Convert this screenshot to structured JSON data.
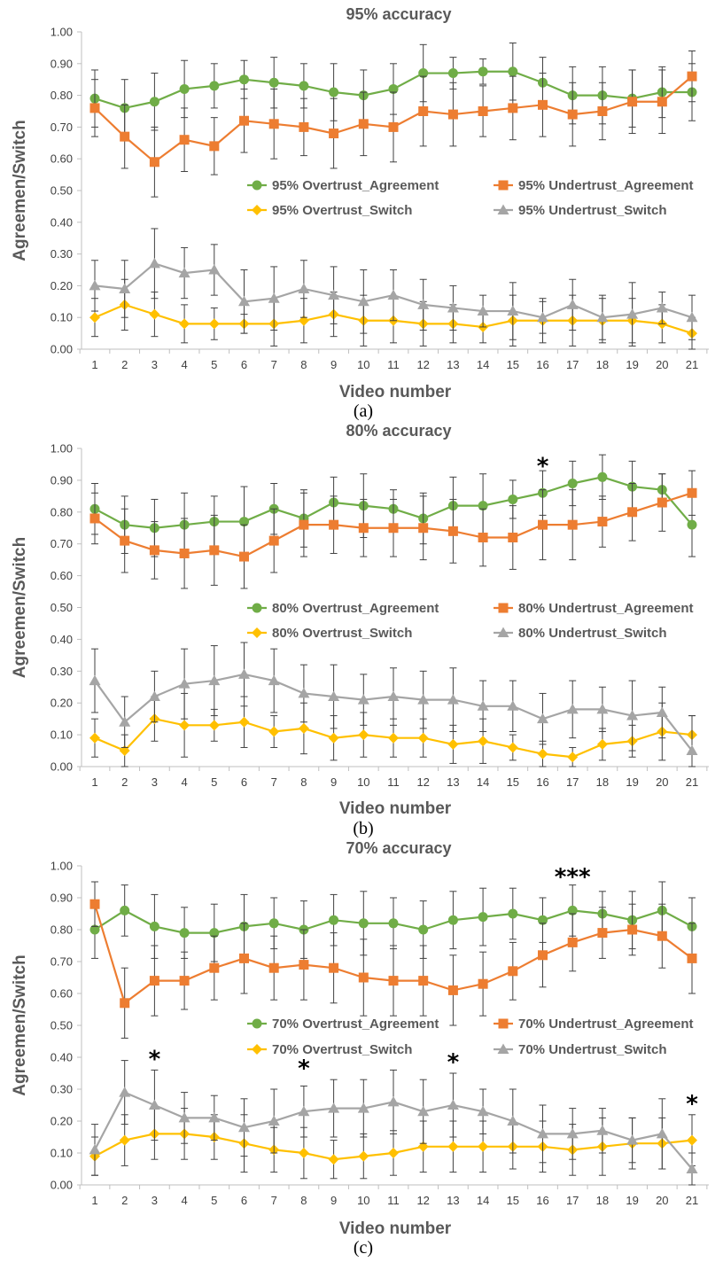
{
  "colors": {
    "overtrust_agreement": "#70AD47",
    "undertrust_agreement": "#ED7D31",
    "overtrust_switch": "#FFC000",
    "undertrust_switch": "#A5A5A5",
    "axis": "#bfbfbf",
    "errorbar": "#404040"
  },
  "chart_data": [
    {
      "type": "line",
      "caption": "(a)",
      "title": "95% accuracy",
      "xlabel": "Video number",
      "ylabel": "Agreemen/Switch",
      "ylim": [
        0,
        1
      ],
      "yticks": [
        "0.00",
        "0.10",
        "0.20",
        "0.30",
        "0.40",
        "0.50",
        "0.60",
        "0.70",
        "0.80",
        "0.90",
        "1.00"
      ],
      "x": [
        "1",
        "2",
        "3",
        "4",
        "5",
        "6",
        "7",
        "8",
        "9",
        "10",
        "11",
        "12",
        "13",
        "14",
        "15",
        "16",
        "17",
        "18",
        "19",
        "20",
        "21"
      ],
      "legend_position": "middle",
      "series": [
        {
          "name": "95% Overtrust_Agreement",
          "marker": "circle",
          "color_key": "overtrust_agreement",
          "values": [
            0.79,
            0.76,
            0.78,
            0.82,
            0.83,
            0.85,
            0.84,
            0.83,
            0.81,
            0.8,
            0.82,
            0.87,
            0.87,
            0.875,
            0.875,
            0.84,
            0.8,
            0.8,
            0.79,
            0.81,
            0.81
          ],
          "errors": [
            0.09,
            0.09,
            0.09,
            0.09,
            0.07,
            0.06,
            0.08,
            0.07,
            0.09,
            0.08,
            0.08,
            0.09,
            0.05,
            0.04,
            0.09,
            0.08,
            0.09,
            0.09,
            0.09,
            0.08,
            0.09
          ]
        },
        {
          "name": "95% Undertrust_Agreement",
          "marker": "square",
          "color_key": "undertrust_agreement",
          "values": [
            0.76,
            0.67,
            0.59,
            0.66,
            0.64,
            0.72,
            0.71,
            0.7,
            0.68,
            0.71,
            0.7,
            0.75,
            0.74,
            0.75,
            0.76,
            0.77,
            0.74,
            0.75,
            0.78,
            0.78,
            0.86
          ],
          "errors": [
            0.09,
            0.1,
            0.11,
            0.1,
            0.09,
            0.1,
            0.11,
            0.09,
            0.11,
            0.1,
            0.11,
            0.11,
            0.1,
            0.08,
            0.1,
            0.1,
            0.1,
            0.09,
            0.1,
            0.1,
            0.08
          ]
        },
        {
          "name": "95% Overtrust_Switch",
          "marker": "diamond",
          "color_key": "overtrust_switch",
          "values": [
            0.1,
            0.14,
            0.11,
            0.08,
            0.08,
            0.08,
            0.08,
            0.09,
            0.11,
            0.09,
            0.09,
            0.08,
            0.08,
            0.07,
            0.09,
            0.09,
            0.09,
            0.09,
            0.09,
            0.08,
            0.05
          ],
          "errors": [
            0.06,
            0.08,
            0.07,
            0.06,
            0.05,
            0.03,
            0.07,
            0.07,
            0.07,
            0.08,
            0.07,
            0.07,
            0.06,
            0.05,
            0.08,
            0.07,
            0.08,
            0.07,
            0.07,
            0.06,
            0.05
          ]
        },
        {
          "name": "95% Undertrust_Switch",
          "marker": "triangle",
          "color_key": "undertrust_switch",
          "values": [
            0.2,
            0.19,
            0.27,
            0.24,
            0.25,
            0.15,
            0.16,
            0.19,
            0.17,
            0.15,
            0.17,
            0.14,
            0.13,
            0.12,
            0.12,
            0.1,
            0.14,
            0.1,
            0.11,
            0.13,
            0.1
          ],
          "errors": [
            0.08,
            0.09,
            0.11,
            0.08,
            0.08,
            0.1,
            0.1,
            0.09,
            0.09,
            0.1,
            0.08,
            0.08,
            0.07,
            0.05,
            0.09,
            0.05,
            0.08,
            0.07,
            0.1,
            0.05,
            0.07
          ]
        }
      ],
      "annotations": []
    },
    {
      "type": "line",
      "caption": "(b)",
      "title": "80% accuracy",
      "xlabel": "Video number",
      "ylabel": "Agreemen/Switch",
      "ylim": [
        0,
        1
      ],
      "yticks": [
        "0.00",
        "0.10",
        "0.20",
        "0.30",
        "0.40",
        "0.50",
        "0.60",
        "0.70",
        "0.80",
        "0.90",
        "1.00"
      ],
      "x": [
        "1",
        "2",
        "3",
        "4",
        "5",
        "6",
        "7",
        "8",
        "9",
        "10",
        "11",
        "12",
        "13",
        "14",
        "15",
        "16",
        "17",
        "18",
        "19",
        "20",
        "21"
      ],
      "legend_position": "middle",
      "series": [
        {
          "name": "80% Overtrust_Agreement",
          "marker": "circle",
          "color_key": "overtrust_agreement",
          "values": [
            0.81,
            0.76,
            0.75,
            0.76,
            0.77,
            0.77,
            0.81,
            0.78,
            0.83,
            0.82,
            0.81,
            0.78,
            0.82,
            0.82,
            0.84,
            0.86,
            0.89,
            0.91,
            0.88,
            0.87,
            0.76
          ],
          "errors": [
            0.08,
            0.09,
            0.09,
            0.1,
            0.08,
            0.11,
            0.08,
            0.09,
            0.08,
            0.1,
            0.06,
            0.08,
            0.09,
            0.1,
            0.06,
            0.07,
            0.07,
            0.07,
            0.08,
            0.05,
            0.1
          ]
        },
        {
          "name": "80% Undertrust_Agreement",
          "marker": "square",
          "color_key": "undertrust_agreement",
          "values": [
            0.78,
            0.71,
            0.68,
            0.67,
            0.68,
            0.66,
            0.71,
            0.76,
            0.76,
            0.75,
            0.75,
            0.75,
            0.74,
            0.72,
            0.72,
            0.76,
            0.76,
            0.77,
            0.8,
            0.83,
            0.86
          ],
          "errors": [
            0.08,
            0.1,
            0.09,
            0.11,
            0.11,
            0.1,
            0.1,
            0.1,
            0.09,
            0.09,
            0.09,
            0.1,
            0.1,
            0.09,
            0.1,
            0.11,
            0.11,
            0.08,
            0.09,
            0.09,
            0.07
          ]
        },
        {
          "name": "80% Overtrust_Switch",
          "marker": "diamond",
          "color_key": "overtrust_switch",
          "values": [
            0.09,
            0.05,
            0.15,
            0.13,
            0.13,
            0.14,
            0.11,
            0.12,
            0.09,
            0.1,
            0.09,
            0.09,
            0.07,
            0.08,
            0.06,
            0.04,
            0.03,
            0.07,
            0.08,
            0.11,
            0.1
          ],
          "errors": [
            0.06,
            0.05,
            0.07,
            0.1,
            0.05,
            0.08,
            0.05,
            0.08,
            0.07,
            0.07,
            0.06,
            0.06,
            0.06,
            0.07,
            0.04,
            0.04,
            0.03,
            0.05,
            0.05,
            0.09,
            0.06
          ]
        },
        {
          "name": "80% Undertrust_Switch",
          "marker": "triangle",
          "color_key": "undertrust_switch",
          "values": [
            0.27,
            0.14,
            0.22,
            0.26,
            0.27,
            0.29,
            0.27,
            0.23,
            0.22,
            0.21,
            0.22,
            0.21,
            0.21,
            0.19,
            0.19,
            0.15,
            0.18,
            0.18,
            0.16,
            0.17,
            0.05
          ],
          "errors": [
            0.1,
            0.08,
            0.08,
            0.11,
            0.11,
            0.1,
            0.1,
            0.09,
            0.1,
            0.08,
            0.09,
            0.09,
            0.1,
            0.08,
            0.08,
            0.08,
            0.09,
            0.07,
            0.11,
            0.08,
            0.11
          ]
        }
      ],
      "annotations": [
        {
          "text": "*",
          "x": "16",
          "y": 0.96
        }
      ]
    },
    {
      "type": "line",
      "caption": "(c)",
      "title": "70% accuracy",
      "xlabel": "Video number",
      "ylabel": "Agreemen/Switch",
      "ylim": [
        0,
        1
      ],
      "yticks": [
        "0.00",
        "0.10",
        "0.20",
        "0.30",
        "0.40",
        "0.50",
        "0.60",
        "0.70",
        "0.80",
        "0.90",
        "1.00"
      ],
      "x": [
        "1",
        "2",
        "3",
        "4",
        "5",
        "6",
        "7",
        "8",
        "9",
        "10",
        "11",
        "12",
        "13",
        "14",
        "15",
        "16",
        "17",
        "18",
        "19",
        "20",
        "21"
      ],
      "legend_position": "middle",
      "series": [
        {
          "name": "70% Overtrust_Agreement",
          "marker": "circle",
          "color_key": "overtrust_agreement",
          "values": [
            0.8,
            0.86,
            0.81,
            0.79,
            0.79,
            0.81,
            0.82,
            0.8,
            0.83,
            0.82,
            0.82,
            0.8,
            0.83,
            0.84,
            0.85,
            0.83,
            0.86,
            0.85,
            0.83,
            0.86,
            0.81
          ],
          "errors": [
            0.09,
            0.08,
            0.1,
            0.08,
            0.09,
            0.1,
            0.08,
            0.09,
            0.08,
            0.1,
            0.08,
            0.09,
            0.09,
            0.09,
            0.08,
            0.07,
            0.08,
            0.07,
            0.09,
            0.09,
            0.09
          ]
        },
        {
          "name": "70% Undertrust_Agreement",
          "marker": "square",
          "color_key": "undertrust_agreement",
          "values": [
            0.88,
            0.57,
            0.64,
            0.64,
            0.68,
            0.71,
            0.68,
            0.69,
            0.68,
            0.65,
            0.64,
            0.64,
            0.61,
            0.63,
            0.67,
            0.72,
            0.76,
            0.79,
            0.8,
            0.78,
            0.71
          ],
          "errors": [
            0.07,
            0.11,
            0.11,
            0.09,
            0.1,
            0.11,
            0.1,
            0.11,
            0.11,
            0.12,
            0.11,
            0.11,
            0.11,
            0.1,
            0.09,
            0.1,
            0.09,
            0.08,
            0.08,
            0.1,
            0.11
          ]
        },
        {
          "name": "70% Overtrust_Switch",
          "marker": "diamond",
          "color_key": "overtrust_switch",
          "values": [
            0.09,
            0.14,
            0.16,
            0.16,
            0.15,
            0.13,
            0.11,
            0.1,
            0.08,
            0.09,
            0.1,
            0.12,
            0.12,
            0.12,
            0.12,
            0.12,
            0.11,
            0.12,
            0.13,
            0.13,
            0.14
          ],
          "errors": [
            0.06,
            0.08,
            0.08,
            0.08,
            0.07,
            0.09,
            0.07,
            0.08,
            0.06,
            0.07,
            0.07,
            0.08,
            0.08,
            0.08,
            0.07,
            0.08,
            0.08,
            0.09,
            0.08,
            0.08,
            0.08
          ]
        },
        {
          "name": "70% Undertrust_Switch",
          "marker": "triangle",
          "color_key": "undertrust_switch",
          "values": [
            0.11,
            0.29,
            0.25,
            0.21,
            0.21,
            0.18,
            0.2,
            0.23,
            0.24,
            0.24,
            0.26,
            0.23,
            0.25,
            0.23,
            0.2,
            0.16,
            0.16,
            0.17,
            0.14,
            0.16,
            0.05
          ],
          "errors": [
            0.08,
            0.1,
            0.11,
            0.08,
            0.07,
            0.09,
            0.1,
            0.08,
            0.09,
            0.09,
            0.1,
            0.1,
            0.1,
            0.07,
            0.1,
            0.09,
            0.08,
            0.07,
            0.07,
            0.11,
            0.05
          ]
        }
      ],
      "annotations": [
        {
          "text": "*",
          "x": "3",
          "y": 0.41
        },
        {
          "text": "*",
          "x": "8",
          "y": 0.38
        },
        {
          "text": "*",
          "x": "13",
          "y": 0.4
        },
        {
          "text": "*",
          "x": "17",
          "y": 0.98
        },
        {
          "text": "*",
          "x": "21",
          "y": 0.27
        }
      ],
      "annotation_group": {
        "text": "***",
        "x": "17",
        "y": 0.98
      }
    }
  ]
}
